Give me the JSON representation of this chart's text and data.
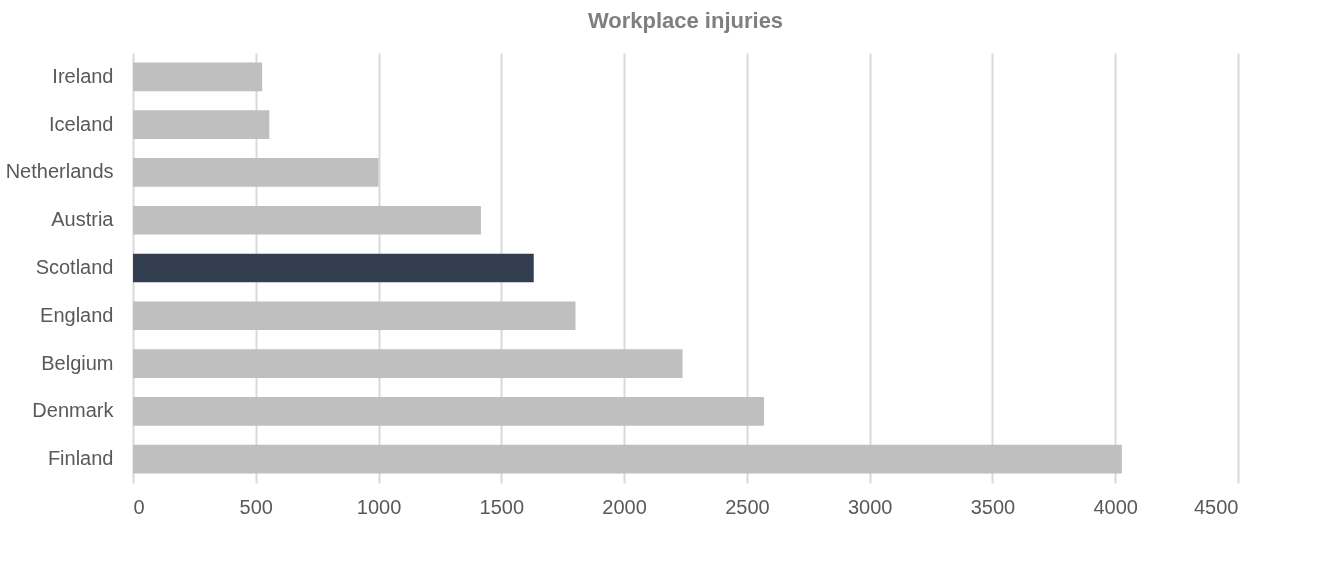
{
  "chart_data": {
    "type": "bar",
    "orientation": "horizontal",
    "title": "Workplace injuries",
    "categories": [
      "Ireland",
      "Iceland",
      "Netherlands",
      "Austria",
      "Scotland",
      "England",
      "Belgium",
      "Denmark",
      "Finland"
    ],
    "values": [
      526,
      555,
      1000,
      1417,
      1632,
      1802,
      2238,
      2570,
      4027
    ],
    "colors": [
      "#bfbfbf",
      "#bfbfbf",
      "#bfbfbf",
      "#bfbfbf",
      "#333f50",
      "#bfbfbf",
      "#bfbfbf",
      "#bfbfbf",
      "#bfbfbf"
    ],
    "xlim": [
      0,
      4500
    ],
    "xticks": [
      0,
      500,
      1000,
      1500,
      2000,
      2500,
      3000,
      3500,
      4000,
      4500
    ],
    "grid": "x"
  }
}
